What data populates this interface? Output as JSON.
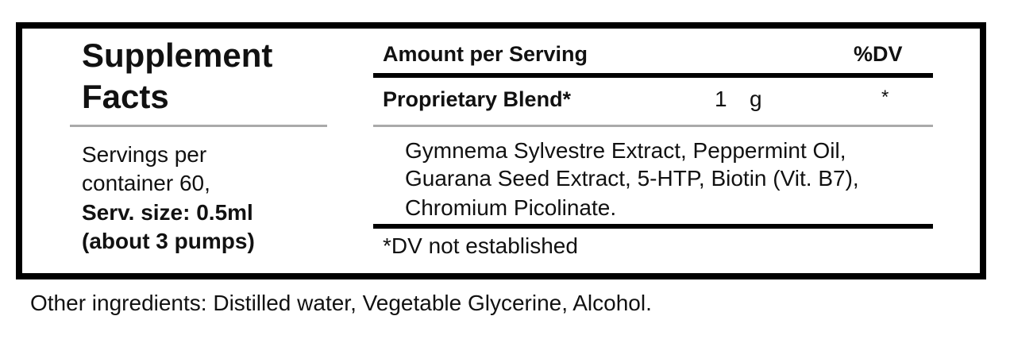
{
  "panel": {
    "title": "Supplement Facts",
    "servings": [
      "Servings per",
      "container 60,"
    ],
    "serving_size": [
      "Serv. size: 0.5ml",
      "(about 3 pumps)"
    ]
  },
  "table": {
    "header": {
      "amount": "Amount per Serving",
      "dv": "%DV"
    },
    "rows": [
      {
        "name": "Proprietary Blend*",
        "amount": "1",
        "unit": "g",
        "dv": "*"
      }
    ],
    "ingredients": [
      "Gymnema Sylvestre Extract, Peppermint Oil,",
      "Guarana Seed Extract, 5-HTP, Biotin (Vit. B7),",
      "Chromium Picolinate."
    ],
    "footnote": "*DV not established"
  },
  "other_ingredients": "Other ingredients: Distilled water, Vegetable Glycerine, Alcohol."
}
